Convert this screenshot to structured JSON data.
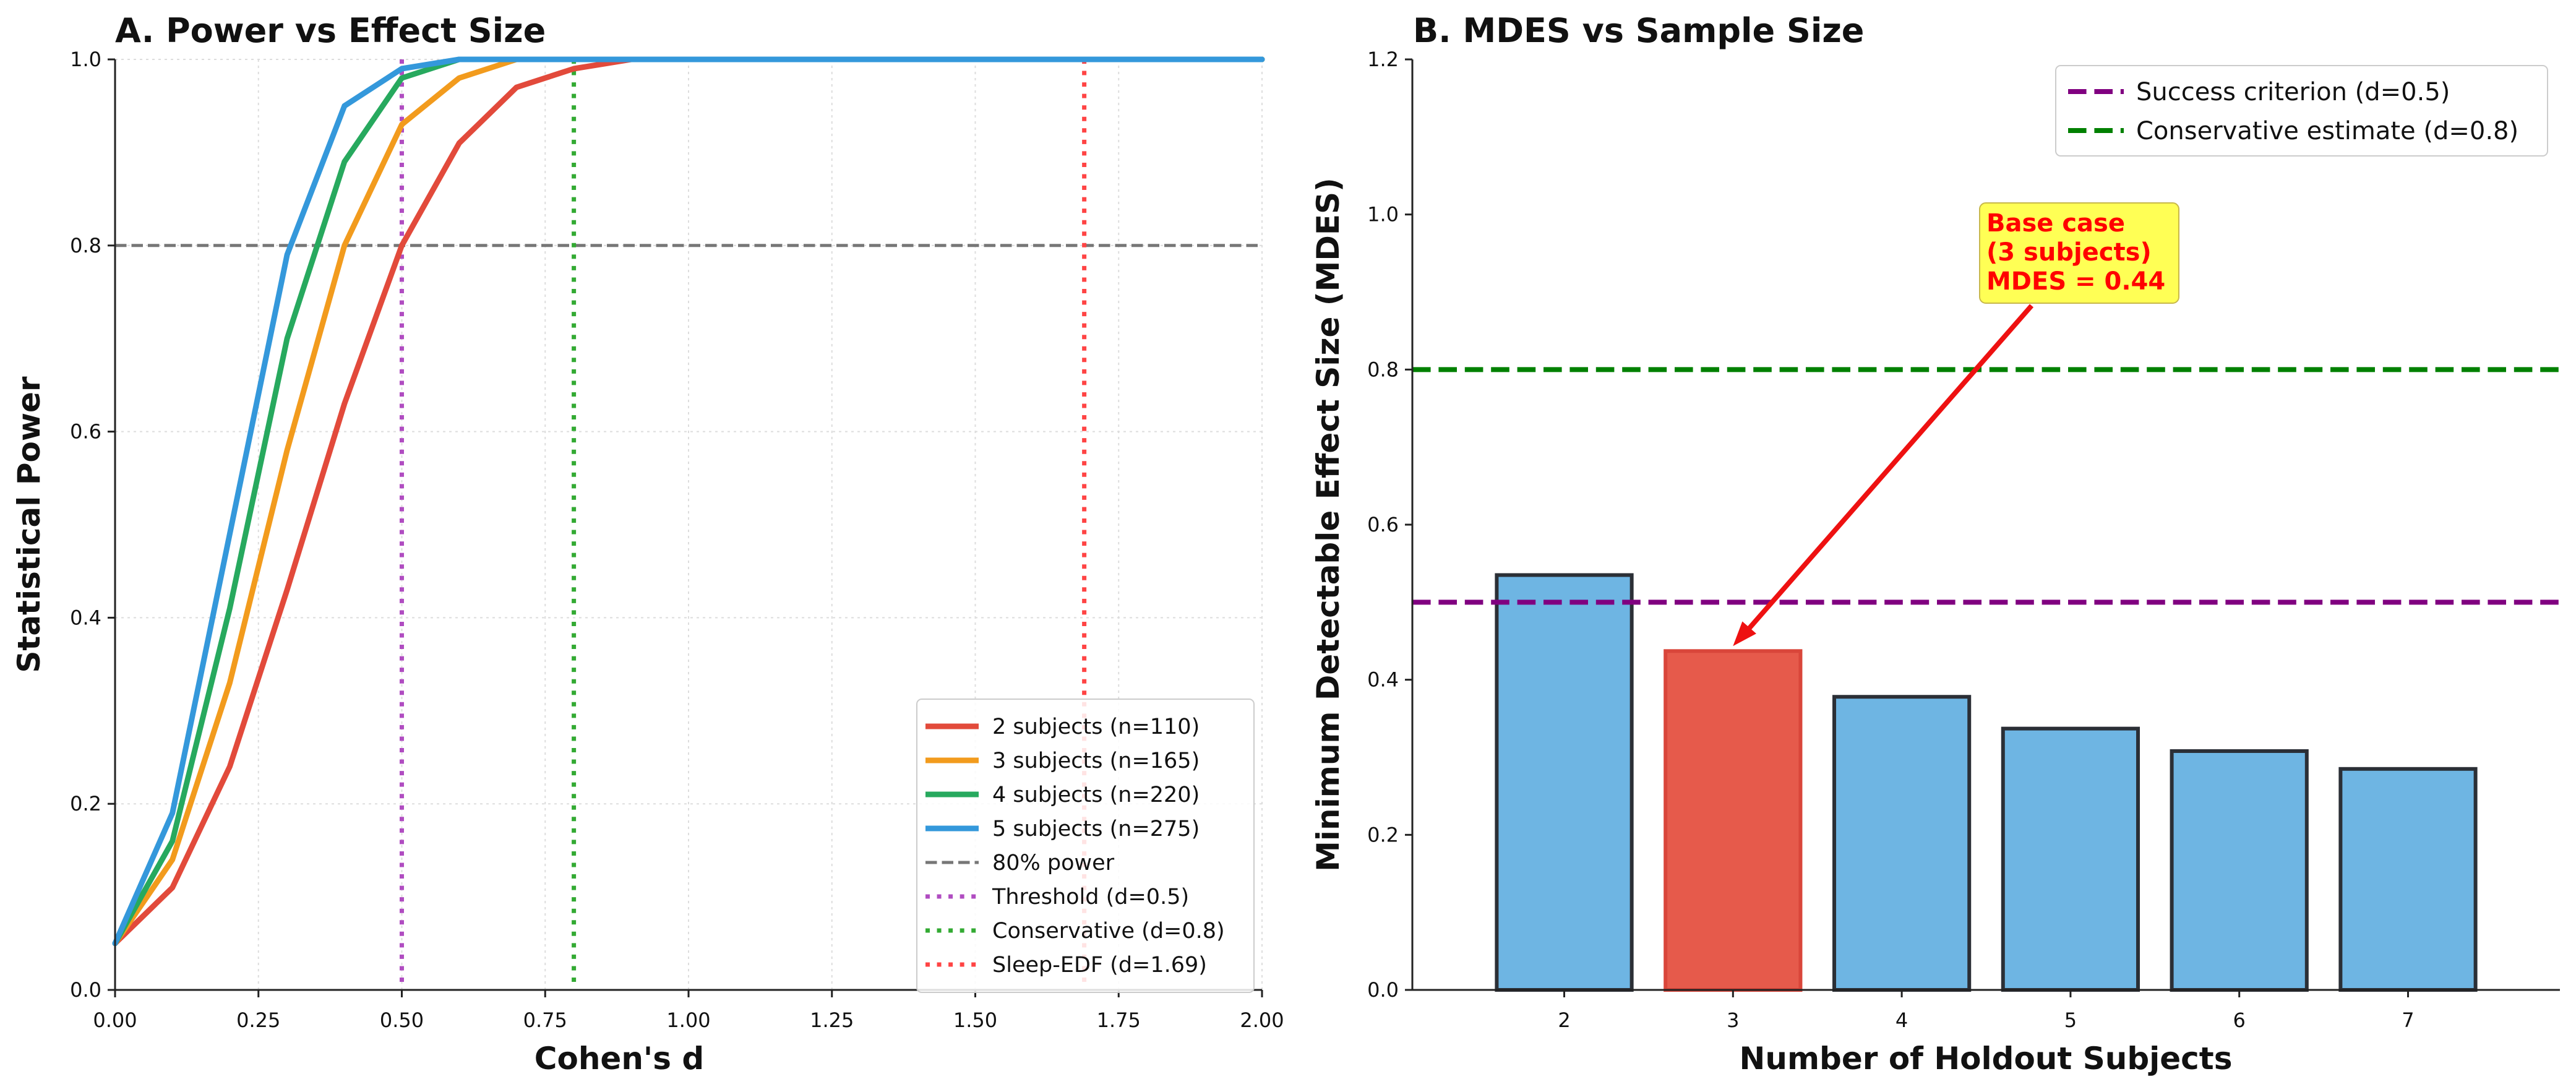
{
  "chart_data": [
    {
      "type": "line",
      "title": "A. Power vs Effect Size",
      "xlabel": "Cohen's d",
      "ylabel": "Statistical Power",
      "xlim": [
        0,
        2
      ],
      "ylim": [
        0,
        1
      ],
      "xticks": [
        "0.00",
        "0.25",
        "0.50",
        "0.75",
        "1.00",
        "1.25",
        "1.50",
        "1.75",
        "2.00"
      ],
      "yticks": [
        "0.0",
        "0.2",
        "0.4",
        "0.6",
        "0.8",
        "1.0"
      ],
      "grid": true,
      "legend_position": "bottom-right",
      "x": [
        0.0,
        0.1,
        0.2,
        0.3,
        0.4,
        0.5,
        0.6,
        0.7,
        0.8,
        0.9,
        1.0,
        1.25,
        1.5,
        1.75,
        2.0
      ],
      "series": [
        {
          "name": "2 subjects (n=110)",
          "color": "#e24a3b",
          "values": [
            0.05,
            0.11,
            0.24,
            0.43,
            0.63,
            0.8,
            0.91,
            0.97,
            0.99,
            1.0,
            1.0,
            1.0,
            1.0,
            1.0,
            1.0
          ]
        },
        {
          "name": "3 subjects (n=165)",
          "color": "#f29b1d",
          "values": [
            0.05,
            0.14,
            0.33,
            0.58,
            0.8,
            0.93,
            0.98,
            1.0,
            1.0,
            1.0,
            1.0,
            1.0,
            1.0,
            1.0,
            1.0
          ]
        },
        {
          "name": "4 subjects (n=220)",
          "color": "#27a95e",
          "values": [
            0.05,
            0.16,
            0.41,
            0.7,
            0.89,
            0.98,
            1.0,
            1.0,
            1.0,
            1.0,
            1.0,
            1.0,
            1.0,
            1.0,
            1.0
          ]
        },
        {
          "name": "5 subjects (n=275)",
          "color": "#3498db",
          "values": [
            0.05,
            0.19,
            0.49,
            0.79,
            0.95,
            0.99,
            1.0,
            1.0,
            1.0,
            1.0,
            1.0,
            1.0,
            1.0,
            1.0,
            1.0
          ]
        }
      ],
      "reference_lines": [
        {
          "name": "80% power",
          "orientation": "horizontal",
          "value": 0.8,
          "color": "#777777",
          "style": "dashed"
        },
        {
          "name": "Threshold (d=0.5)",
          "orientation": "vertical",
          "value": 0.5,
          "color": "#b04cc1",
          "style": "dotted"
        },
        {
          "name": "Conservative (d=0.8)",
          "orientation": "vertical",
          "value": 0.8,
          "color": "#33aa33",
          "style": "dotted"
        },
        {
          "name": "Sleep-EDF (d=1.69)",
          "orientation": "vertical",
          "value": 1.69,
          "color": "#ff4444",
          "style": "dotted"
        }
      ]
    },
    {
      "type": "bar",
      "title": "B. MDES vs Sample Size",
      "xlabel": "Number of Holdout Subjects",
      "ylabel": "Minimum Detectable Effect Size (MDES)",
      "ylim": [
        0,
        1.2
      ],
      "yticks": [
        "0.0",
        "0.2",
        "0.4",
        "0.6",
        "0.8",
        "1.0",
        "1.2"
      ],
      "categories": [
        "2",
        "3",
        "4",
        "5",
        "6",
        "7"
      ],
      "values": [
        0.535,
        0.437,
        0.378,
        0.337,
        0.308,
        0.285
      ],
      "bar_colors": [
        "#6eb5e3",
        "#e65a4b",
        "#6eb5e3",
        "#6eb5e3",
        "#6eb5e3",
        "#6eb5e3"
      ],
      "grid": false,
      "legend_position": "top-right",
      "reference_lines": [
        {
          "name": "Success criterion (d=0.5)",
          "orientation": "horizontal",
          "value": 0.5,
          "color": "#800080",
          "style": "dashed"
        },
        {
          "name": "Conservative estimate (d=0.8)",
          "orientation": "horizontal",
          "value": 0.8,
          "color": "#008000",
          "style": "dashed"
        }
      ],
      "annotation": {
        "lines": [
          "Base case",
          "(3 subjects)",
          "MDES = 0.44"
        ],
        "target_category": "3",
        "target_value": 0.437,
        "text_color": "#ff0000",
        "box_color": "#ffff55",
        "arrow_color": "#ee1111"
      }
    }
  ]
}
